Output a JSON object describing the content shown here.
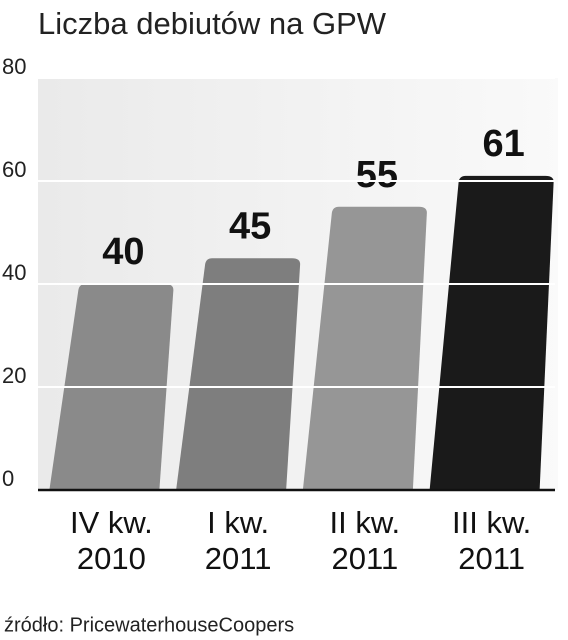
{
  "chart_data": {
    "type": "bar",
    "title": "Liczba debiutów na GPW",
    "categories": [
      "IV kw. 2010",
      "I kw. 2011",
      "II kw. 2011",
      "III kw. 2011"
    ],
    "values": [
      40,
      45,
      55,
      61
    ],
    "colors": [
      "#8a8a8a",
      "#7e7e7e",
      "#969696",
      "#1a1a1a"
    ],
    "ylim": [
      0,
      80
    ],
    "yticks": [
      0,
      20,
      40,
      60,
      80
    ],
    "grid": true,
    "source": "źródło: PricewaterhouseCoopers"
  }
}
